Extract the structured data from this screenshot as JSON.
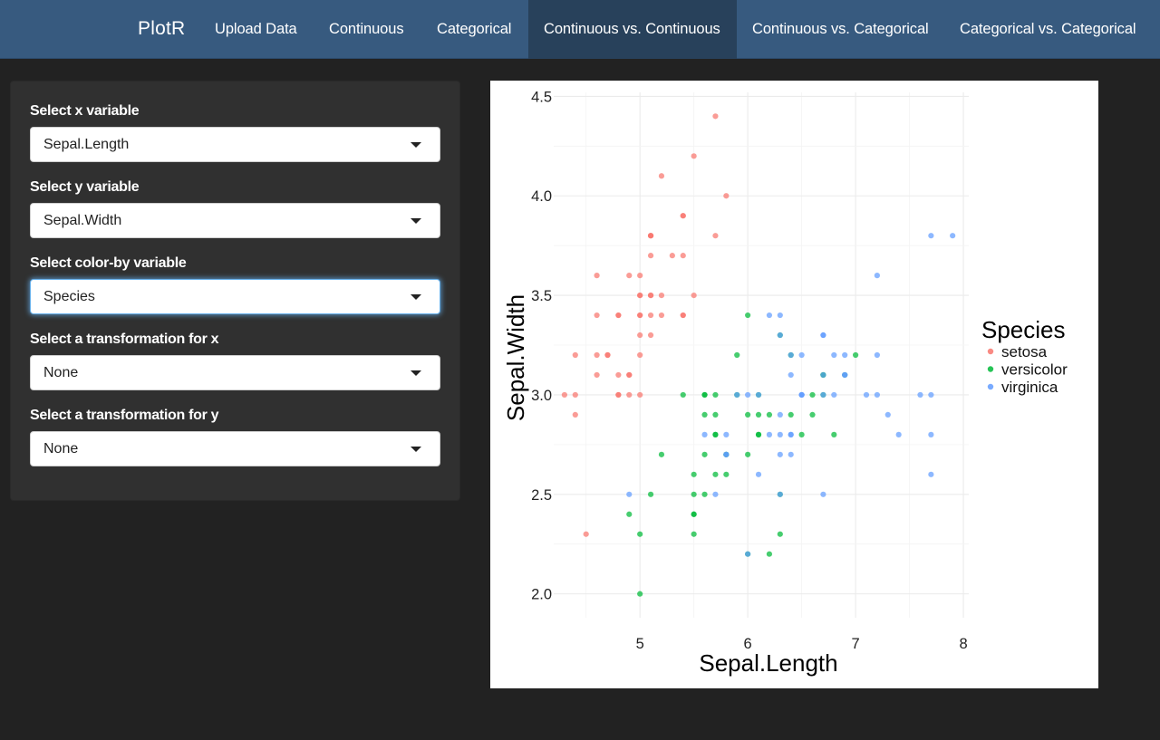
{
  "navbar": {
    "brand": "PlotR",
    "tabs": [
      {
        "label": "Upload Data",
        "active": false
      },
      {
        "label": "Continuous",
        "active": false
      },
      {
        "label": "Categorical",
        "active": false
      },
      {
        "label": "Continuous vs. Continuous",
        "active": true
      },
      {
        "label": "Continuous vs. Categorical",
        "active": false
      },
      {
        "label": "Categorical vs. Categorical",
        "active": false
      }
    ]
  },
  "sidebar": {
    "x_label": "Select x variable",
    "x_value": "Sepal.Length",
    "y_label": "Select y variable",
    "y_value": "Sepal.Width",
    "color_label": "Select color-by variable",
    "color_value": "Species",
    "tx_label": "Select a transformation for x",
    "tx_value": "None",
    "ty_label": "Select a transformation for y",
    "ty_value": "None"
  },
  "colors": {
    "setosa": "#f8766d",
    "versicolor": "#00ba38",
    "virginica": "#619cff",
    "navbar": "#375a7f",
    "navbar_active": "#28415b",
    "background": "#222222"
  },
  "chart_data": {
    "type": "scatter",
    "xlabel": "Sepal.Length",
    "ylabel": "Sepal.Width",
    "xlim": [
      4.2,
      8.05
    ],
    "ylim": [
      1.88,
      4.52
    ],
    "xticks": [
      5,
      6,
      7,
      8
    ],
    "yticks": [
      2.0,
      2.5,
      3.0,
      3.5,
      4.0,
      4.5
    ],
    "ytick_labels": [
      "2.0",
      "2.5",
      "3.0",
      "3.5",
      "4.0",
      "4.5"
    ],
    "grid": true,
    "legend": {
      "title": "Species",
      "position": "right"
    },
    "series": [
      {
        "name": "setosa",
        "points": [
          [
            5.1,
            3.5
          ],
          [
            4.9,
            3.0
          ],
          [
            4.7,
            3.2
          ],
          [
            4.6,
            3.1
          ],
          [
            5.0,
            3.6
          ],
          [
            5.4,
            3.9
          ],
          [
            4.6,
            3.4
          ],
          [
            5.0,
            3.4
          ],
          [
            4.4,
            2.9
          ],
          [
            4.9,
            3.1
          ],
          [
            5.4,
            3.7
          ],
          [
            4.8,
            3.4
          ],
          [
            4.8,
            3.0
          ],
          [
            4.3,
            3.0
          ],
          [
            5.8,
            4.0
          ],
          [
            5.7,
            4.4
          ],
          [
            5.4,
            3.9
          ],
          [
            5.1,
            3.5
          ],
          [
            5.7,
            3.8
          ],
          [
            5.1,
            3.8
          ],
          [
            5.4,
            3.4
          ],
          [
            5.1,
            3.7
          ],
          [
            4.6,
            3.6
          ],
          [
            5.1,
            3.3
          ],
          [
            4.8,
            3.4
          ],
          [
            5.0,
            3.0
          ],
          [
            5.0,
            3.4
          ],
          [
            5.2,
            3.5
          ],
          [
            5.2,
            3.4
          ],
          [
            4.7,
            3.2
          ],
          [
            4.8,
            3.1
          ],
          [
            5.4,
            3.4
          ],
          [
            5.2,
            4.1
          ],
          [
            5.5,
            4.2
          ],
          [
            4.9,
            3.1
          ],
          [
            5.0,
            3.2
          ],
          [
            5.5,
            3.5
          ],
          [
            4.9,
            3.6
          ],
          [
            4.4,
            3.0
          ],
          [
            5.1,
            3.4
          ],
          [
            5.0,
            3.5
          ],
          [
            4.5,
            2.3
          ],
          [
            4.4,
            3.2
          ],
          [
            5.0,
            3.5
          ],
          [
            5.1,
            3.8
          ],
          [
            4.8,
            3.0
          ],
          [
            5.1,
            3.8
          ],
          [
            4.6,
            3.2
          ],
          [
            5.3,
            3.7
          ],
          [
            5.0,
            3.3
          ]
        ]
      },
      {
        "name": "versicolor",
        "points": [
          [
            7.0,
            3.2
          ],
          [
            6.4,
            3.2
          ],
          [
            6.9,
            3.1
          ],
          [
            5.5,
            2.3
          ],
          [
            6.5,
            2.8
          ],
          [
            5.7,
            2.8
          ],
          [
            6.3,
            3.3
          ],
          [
            4.9,
            2.4
          ],
          [
            6.6,
            2.9
          ],
          [
            5.2,
            2.7
          ],
          [
            5.0,
            2.0
          ],
          [
            5.9,
            3.0
          ],
          [
            6.0,
            2.2
          ],
          [
            6.1,
            2.9
          ],
          [
            5.6,
            2.9
          ],
          [
            6.7,
            3.1
          ],
          [
            5.6,
            3.0
          ],
          [
            5.8,
            2.7
          ],
          [
            6.2,
            2.2
          ],
          [
            5.6,
            2.5
          ],
          [
            5.9,
            3.2
          ],
          [
            6.1,
            2.8
          ],
          [
            6.3,
            2.5
          ],
          [
            6.1,
            2.8
          ],
          [
            6.4,
            2.9
          ],
          [
            6.6,
            3.0
          ],
          [
            6.8,
            2.8
          ],
          [
            6.7,
            3.0
          ],
          [
            6.0,
            2.9
          ],
          [
            5.7,
            2.6
          ],
          [
            5.5,
            2.4
          ],
          [
            5.5,
            2.4
          ],
          [
            5.8,
            2.7
          ],
          [
            6.0,
            2.7
          ],
          [
            5.4,
            3.0
          ],
          [
            6.0,
            3.4
          ],
          [
            6.7,
            3.1
          ],
          [
            6.3,
            2.3
          ],
          [
            5.6,
            3.0
          ],
          [
            5.5,
            2.5
          ],
          [
            5.5,
            2.6
          ],
          [
            6.1,
            3.0
          ],
          [
            5.8,
            2.6
          ],
          [
            5.0,
            2.3
          ],
          [
            5.6,
            2.7
          ],
          [
            5.7,
            3.0
          ],
          [
            5.7,
            2.9
          ],
          [
            6.2,
            2.9
          ],
          [
            5.1,
            2.5
          ],
          [
            5.7,
            2.8
          ]
        ]
      },
      {
        "name": "virginica",
        "points": [
          [
            6.3,
            3.3
          ],
          [
            5.8,
            2.7
          ],
          [
            7.1,
            3.0
          ],
          [
            6.3,
            2.9
          ],
          [
            6.5,
            3.0
          ],
          [
            7.6,
            3.0
          ],
          [
            4.9,
            2.5
          ],
          [
            7.3,
            2.9
          ],
          [
            6.7,
            2.5
          ],
          [
            7.2,
            3.6
          ],
          [
            6.5,
            3.2
          ],
          [
            6.4,
            2.7
          ],
          [
            6.8,
            3.0
          ],
          [
            5.7,
            2.5
          ],
          [
            5.8,
            2.8
          ],
          [
            6.4,
            3.2
          ],
          [
            6.5,
            3.0
          ],
          [
            7.7,
            3.8
          ],
          [
            7.7,
            2.6
          ],
          [
            6.0,
            2.2
          ],
          [
            6.9,
            3.2
          ],
          [
            5.6,
            2.8
          ],
          [
            7.7,
            2.8
          ],
          [
            6.3,
            2.7
          ],
          [
            6.7,
            3.3
          ],
          [
            7.2,
            3.2
          ],
          [
            6.2,
            2.8
          ],
          [
            6.1,
            3.0
          ],
          [
            6.4,
            2.8
          ],
          [
            7.2,
            3.0
          ],
          [
            7.4,
            2.8
          ],
          [
            7.9,
            3.8
          ],
          [
            6.4,
            2.8
          ],
          [
            6.3,
            2.8
          ],
          [
            6.1,
            2.6
          ],
          [
            7.7,
            3.0
          ],
          [
            6.3,
            3.4
          ],
          [
            6.4,
            3.1
          ],
          [
            6.0,
            3.0
          ],
          [
            6.9,
            3.1
          ],
          [
            6.7,
            3.1
          ],
          [
            6.9,
            3.1
          ],
          [
            5.8,
            2.7
          ],
          [
            6.8,
            3.2
          ],
          [
            6.7,
            3.3
          ],
          [
            6.7,
            3.0
          ],
          [
            6.3,
            2.5
          ],
          [
            6.5,
            3.0
          ],
          [
            6.2,
            3.4
          ],
          [
            5.9,
            3.0
          ]
        ]
      }
    ]
  }
}
